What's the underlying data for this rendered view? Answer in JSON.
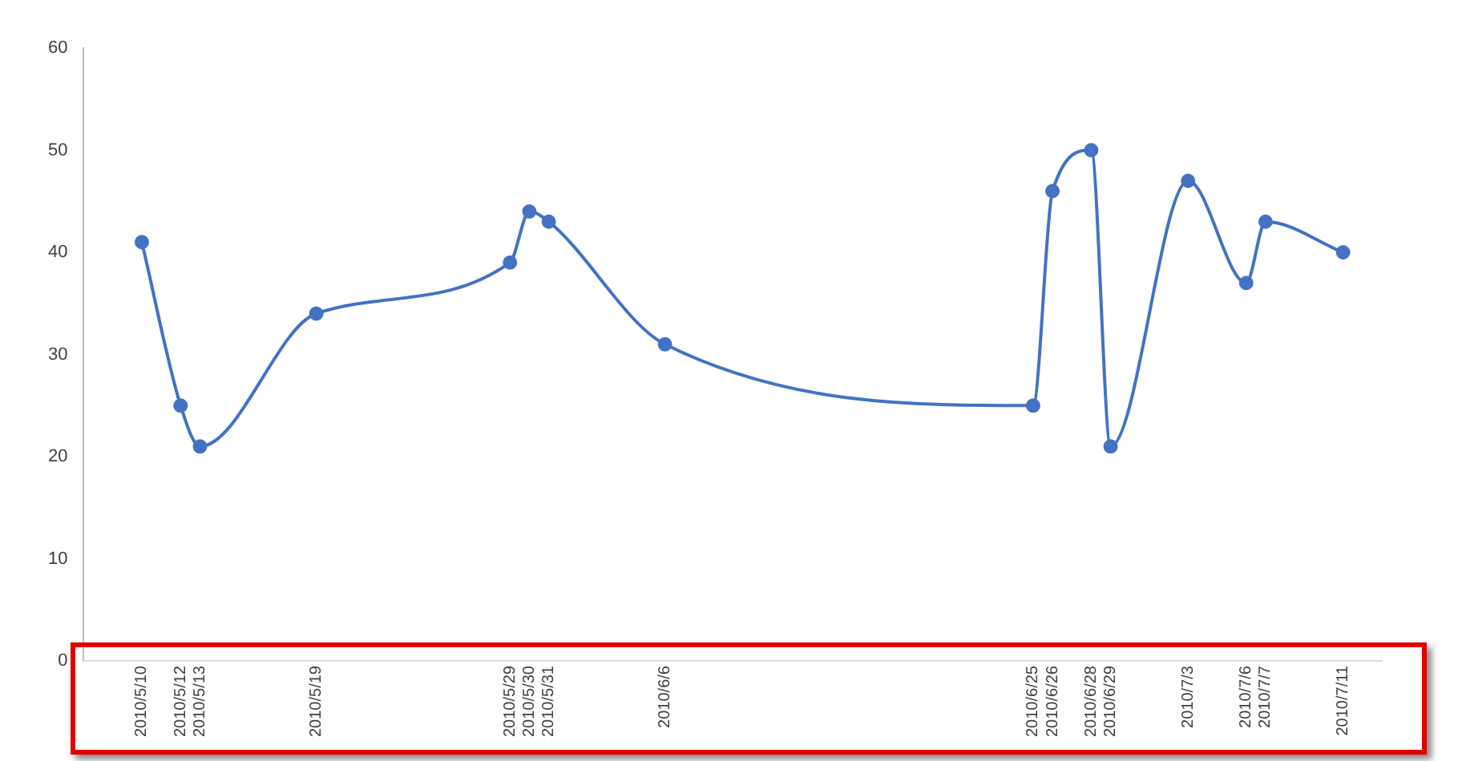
{
  "chart_data": {
    "type": "line",
    "marker": "circle",
    "color": "#4472c4",
    "x": [
      "2010-05-10",
      "2010-05-12",
      "2010-05-13",
      "2010-05-19",
      "2010-05-29",
      "2010-05-30",
      "2010-05-31",
      "2010-06-06",
      "2010-06-25",
      "2010-06-26",
      "2010-06-28",
      "2010-06-29",
      "2010-07-03",
      "2010-07-06",
      "2010-07-07",
      "2010-07-11"
    ],
    "values": [
      41,
      25,
      21,
      34,
      39,
      44,
      43,
      31,
      25,
      46,
      50,
      21,
      47,
      37,
      43,
      40
    ],
    "xlim": [
      "2010-05-07",
      "2010-07-13"
    ],
    "xticks": [
      {
        "value": "2010-05-10",
        "label": "2010/5/10"
      },
      {
        "value": "2010-05-12",
        "label": "2010/5/12"
      },
      {
        "value": "2010-05-13",
        "label": "2010/5/13"
      },
      {
        "value": "2010-05-19",
        "label": "2010/5/19"
      },
      {
        "value": "2010-05-29",
        "label": "2010/5/29"
      },
      {
        "value": "2010-05-30",
        "label": "2010/5/30"
      },
      {
        "value": "2010-05-31",
        "label": "2010/5/31"
      },
      {
        "value": "2010-06-06",
        "label": "2010/6/6"
      },
      {
        "value": "2010-06-25",
        "label": "2010/6/25"
      },
      {
        "value": "2010-06-26",
        "label": "2010/6/26"
      },
      {
        "value": "2010-06-28",
        "label": "2010/6/28"
      },
      {
        "value": "2010-06-29",
        "label": "2010/6/29"
      },
      {
        "value": "2010-07-03",
        "label": "2010/7/3"
      },
      {
        "value": "2010-07-06",
        "label": "2010/7/6"
      },
      {
        "value": "2010-07-07",
        "label": "2010/7/7"
      },
      {
        "value": "2010-07-11",
        "label": "2010/7/11"
      }
    ],
    "ylim": [
      0,
      60
    ],
    "yticks": [
      0,
      10,
      20,
      30,
      40,
      50,
      60
    ]
  }
}
